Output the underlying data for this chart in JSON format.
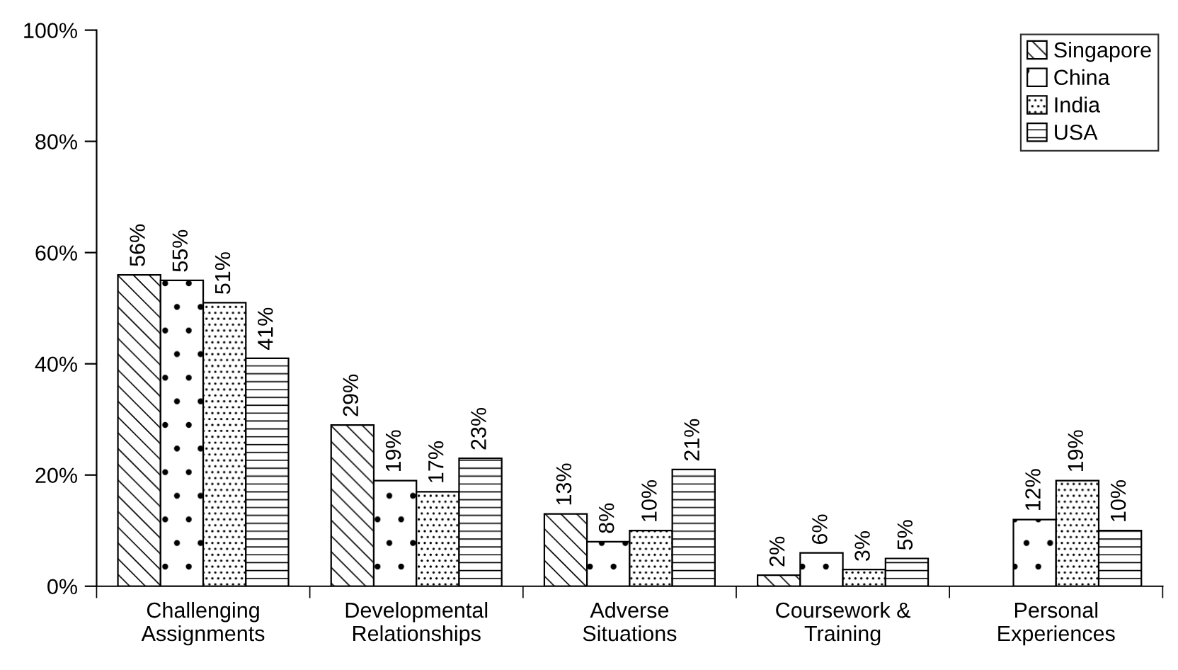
{
  "chart_data": {
    "type": "bar",
    "categories": [
      "Challenging\nAssignments",
      "Developmental\nRelationships",
      "Adverse\nSituations",
      "Coursework &\nTraining",
      "Personal\nExperiences"
    ],
    "series": [
      {
        "name": "Singapore",
        "values": [
          56,
          29,
          13,
          2,
          null
        ],
        "value_labels": [
          "56%",
          "29%",
          "13%",
          "2%",
          null
        ]
      },
      {
        "name": "China",
        "values": [
          55,
          19,
          8,
          6,
          12
        ],
        "value_labels": [
          "55%",
          "19%",
          "8%",
          "6%",
          "12%"
        ]
      },
      {
        "name": "India",
        "values": [
          51,
          17,
          10,
          3,
          19
        ],
        "value_labels": [
          "51%",
          "17%",
          "10%",
          "3%",
          "19%"
        ]
      },
      {
        "name": "USA",
        "values": [
          41,
          23,
          21,
          5,
          10
        ],
        "value_labels": [
          "41%",
          "23%",
          "21%",
          "5%",
          "10%"
        ]
      }
    ],
    "ylim": [
      0,
      100
    ],
    "yticks": [
      {
        "value": 0,
        "label": "0%"
      },
      {
        "value": 20,
        "label": "20%"
      },
      {
        "value": 40,
        "label": "40%"
      },
      {
        "value": 60,
        "label": "60%"
      },
      {
        "value": 80,
        "label": "80%"
      },
      {
        "value": 100,
        "label": "100%"
      }
    ],
    "grid": false,
    "legend": "top right"
  }
}
